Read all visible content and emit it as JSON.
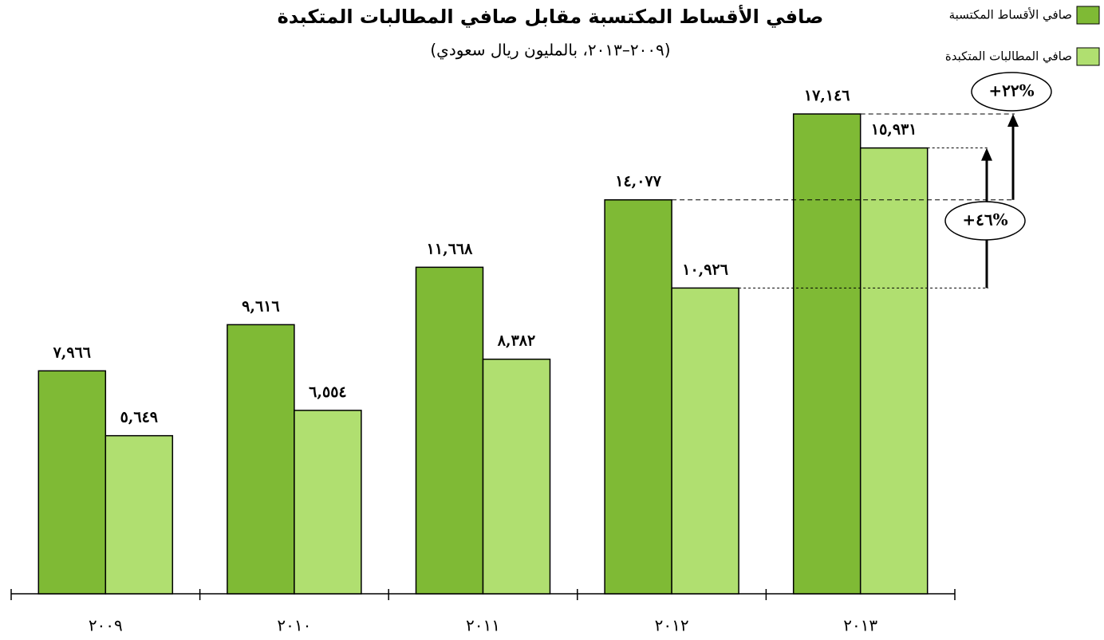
{
  "chart_data": {
    "type": "bar",
    "title": "صافي الأقساط المكتسبة مقابل صافي المطالبات المتكبدة",
    "subtitle": "(٢٠٠٩–٢٠١٣، بالمليون ريال سعودي)",
    "categories": [
      "٢٠٠٩",
      "٢٠١٠",
      "٢٠١١",
      "٢٠١٢",
      "٢٠١٣"
    ],
    "series": [
      {
        "name": "صافي الأقساط المكتسبة",
        "color": "#7fba35",
        "values": [
          7966,
          9616,
          11668,
          14077,
          17146
        ],
        "value_labels": [
          "٧,٩٦٦",
          "٩,٦١٦",
          "١١,٦٦٨",
          "١٤,٠٧٧",
          "١٧,١٤٦"
        ]
      },
      {
        "name": "صافي المطالبات المتكبدة",
        "color": "#b0df70",
        "values": [
          5649,
          6554,
          8382,
          10926,
          15931
        ],
        "value_labels": [
          "٥,٦٤٩",
          "٦,٥٥٤",
          "٨,٣٨٢",
          "١٠,٩٢٦",
          "١٥,٩٣١"
        ]
      }
    ],
    "annotations": [
      "+٢٢%",
      "+٤٦%"
    ],
    "ylim": [
      0,
      18000
    ],
    "legend": "top-right"
  }
}
